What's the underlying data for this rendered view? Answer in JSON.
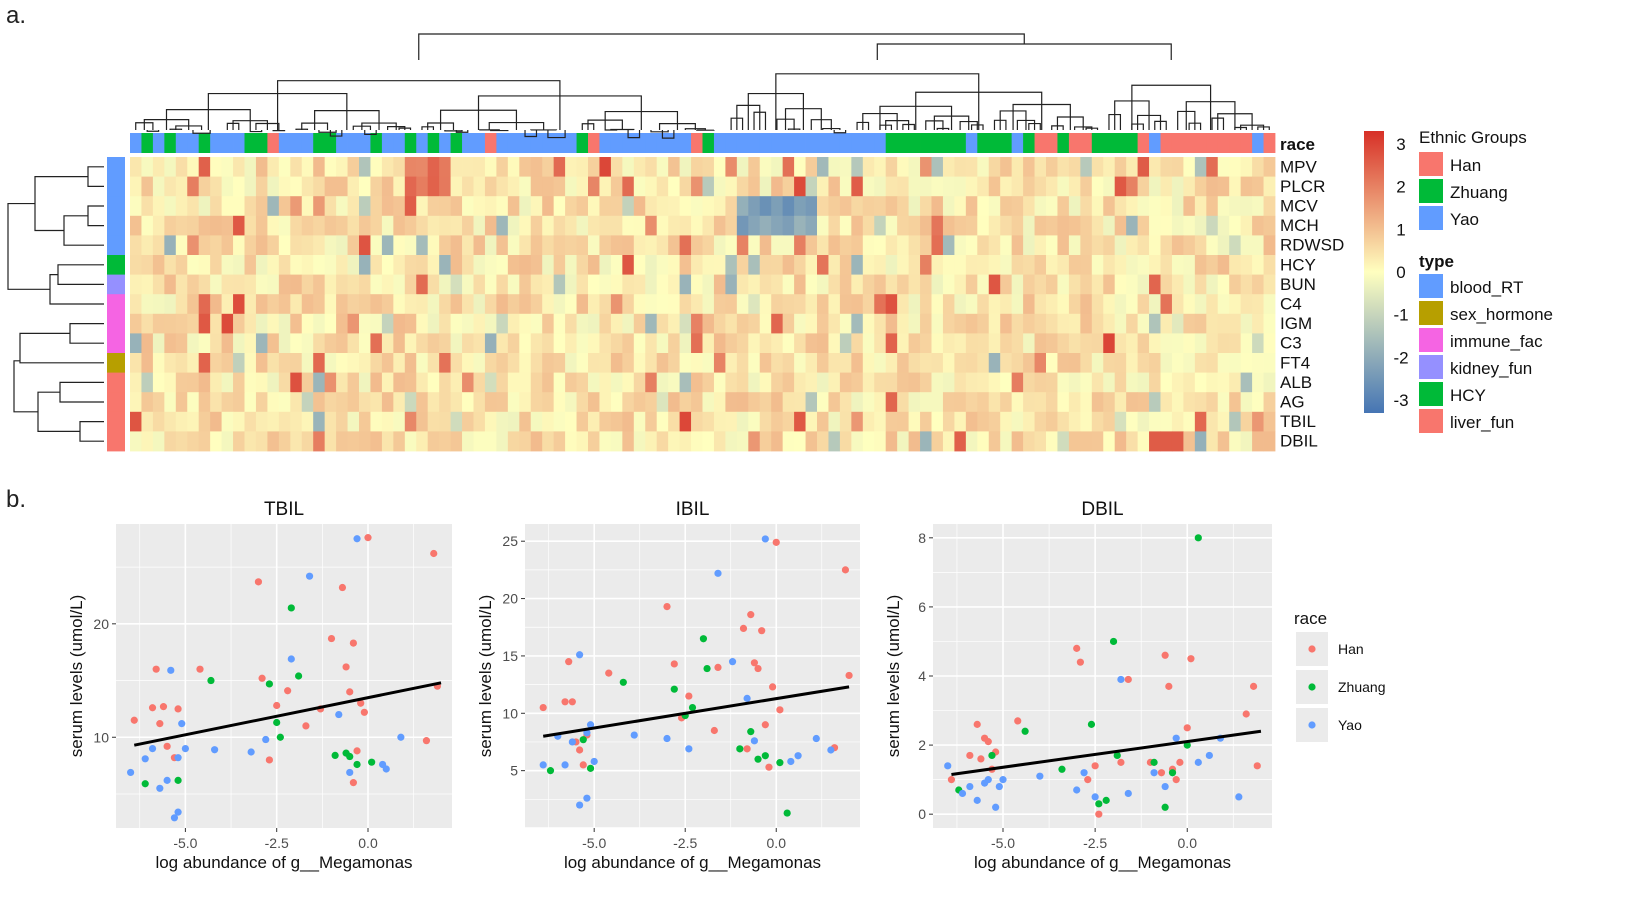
{
  "panel_labels": {
    "a": "a.",
    "b": "b."
  },
  "heatmap": {
    "race_label": "race",
    "rows": [
      "MPV",
      "PLCR",
      "MCV",
      "MCH",
      "RDWSD",
      "HCY",
      "BUN",
      "C4",
      "IGM",
      "C3",
      "FT4",
      "ALB",
      "AG",
      "TBIL",
      "DBIL"
    ],
    "row_types": [
      "blood_RT",
      "blood_RT",
      "blood_RT",
      "blood_RT",
      "blood_RT",
      "HCY",
      "kidney_fun",
      "immune_fac",
      "immune_fac",
      "immune_fac",
      "sex_hormone",
      "liver_fun",
      "liver_fun",
      "liver_fun",
      "liver_fun"
    ],
    "color_scale": {
      "ticks": [
        "3",
        "2",
        "1",
        "0",
        "-1",
        "-2",
        "-3"
      ],
      "min": -3.3,
      "max": 3.3,
      "low": "#4575b4",
      "mid": "#ffffbf",
      "high": "#d73027"
    },
    "legend": {
      "ethnic_title": "Ethnic Groups",
      "ethnic": [
        {
          "label": "Han",
          "color": "#f8766d"
        },
        {
          "label": "Zhuang",
          "color": "#00ba38"
        },
        {
          "label": "Yao",
          "color": "#619cff"
        }
      ],
      "type_title": "type",
      "types": [
        {
          "label": "blood_RT",
          "color": "#619cff"
        },
        {
          "label": "sex_hormone",
          "color": "#b79f00"
        },
        {
          "label": "immune_fac",
          "color": "#f564e3"
        },
        {
          "label": "kidney_fun",
          "color": "#9590ff"
        },
        {
          "label": "HCY",
          "color": "#00ba38"
        },
        {
          "label": "liver_fun",
          "color": "#f8766d"
        }
      ]
    }
  },
  "chart_data": [
    {
      "type": "scatter",
      "title": "TBIL",
      "xlabel": "log abundance of g__Megamonas",
      "ylabel": "serum levels (umol/L)",
      "xlim": [
        -6.9,
        2.3
      ],
      "ylim": [
        2.0,
        28.8
      ],
      "xticks": [
        -5.0,
        -2.5,
        0.0
      ],
      "xtick_labels": [
        "-5.0",
        "-2.5",
        "0.0"
      ],
      "yticks": [
        10,
        20
      ],
      "ytick_labels": [
        "10",
        "20"
      ],
      "trend": {
        "x": [
          -6.4,
          2.0
        ],
        "y": [
          9.3,
          14.8
        ]
      },
      "series": [
        {
          "name": "Han",
          "color": "#f8766d",
          "points": [
            [
              -6.4,
              11.5
            ],
            [
              -5.9,
              12.6
            ],
            [
              -5.8,
              16.0
            ],
            [
              -5.6,
              12.7
            ],
            [
              -5.7,
              11.2
            ],
            [
              -5.5,
              9.2
            ],
            [
              -5.3,
              8.2
            ],
            [
              -5.2,
              12.5
            ],
            [
              -4.6,
              16.0
            ],
            [
              -3.0,
              23.7
            ],
            [
              -2.9,
              15.2
            ],
            [
              -2.7,
              8.0
            ],
            [
              -2.5,
              12.8
            ],
            [
              -2.2,
              14.1
            ],
            [
              -1.7,
              11.0
            ],
            [
              -1.3,
              12.5
            ],
            [
              -1.0,
              18.7
            ],
            [
              -0.7,
              23.2
            ],
            [
              -0.6,
              16.2
            ],
            [
              -0.5,
              14.0
            ],
            [
              -0.4,
              18.3
            ],
            [
              -0.4,
              6.0
            ],
            [
              -0.3,
              8.8
            ],
            [
              -0.2,
              13.0
            ],
            [
              -0.1,
              12.2
            ],
            [
              0.0,
              27.6
            ],
            [
              1.6,
              9.7
            ],
            [
              1.8,
              26.2
            ],
            [
              1.9,
              14.5
            ]
          ]
        },
        {
          "name": "Zhuang",
          "color": "#00ba38",
          "points": [
            [
              -6.1,
              5.9
            ],
            [
              -5.2,
              6.2
            ],
            [
              -4.3,
              15.0
            ],
            [
              -2.7,
              14.7
            ],
            [
              -2.5,
              11.3
            ],
            [
              -2.4,
              10.0
            ],
            [
              -2.1,
              21.4
            ],
            [
              -1.9,
              15.4
            ],
            [
              -0.9,
              8.4
            ],
            [
              -0.6,
              8.6
            ],
            [
              -0.5,
              8.3
            ],
            [
              -0.3,
              7.6
            ],
            [
              0.1,
              7.8
            ]
          ]
        },
        {
          "name": "Yao",
          "color": "#619cff",
          "points": [
            [
              -6.5,
              6.9
            ],
            [
              -6.1,
              8.1
            ],
            [
              -5.9,
              9.0
            ],
            [
              -5.7,
              5.5
            ],
            [
              -5.5,
              6.2
            ],
            [
              -5.4,
              15.9
            ],
            [
              -5.3,
              2.9
            ],
            [
              -5.2,
              3.4
            ],
            [
              -5.2,
              8.2
            ],
            [
              -5.1,
              11.2
            ],
            [
              -5.0,
              9.0
            ],
            [
              -4.2,
              8.9
            ],
            [
              -3.2,
              8.7
            ],
            [
              -2.8,
              9.8
            ],
            [
              -2.1,
              16.9
            ],
            [
              -1.6,
              24.2
            ],
            [
              -0.8,
              12.0
            ],
            [
              -0.5,
              6.9
            ],
            [
              -0.3,
              27.5
            ],
            [
              0.4,
              7.6
            ],
            [
              0.5,
              7.2
            ],
            [
              0.9,
              10.0
            ]
          ]
        }
      ]
    },
    {
      "type": "scatter",
      "title": "IBIL",
      "xlabel": "log abundance of g__Megamonas",
      "ylabel": "serum levels (umol/L)",
      "xlim": [
        -6.9,
        2.3
      ],
      "ylim": [
        0.0,
        26.5
      ],
      "xticks": [
        -5.0,
        -2.5,
        0.0
      ],
      "xtick_labels": [
        "-5.0",
        "-2.5",
        "0.0"
      ],
      "yticks": [
        5,
        10,
        15,
        20,
        25
      ],
      "ytick_labels": [
        "5",
        "10",
        "15",
        "20",
        "25"
      ],
      "trend": {
        "x": [
          -6.4,
          2.0
        ],
        "y": [
          8.0,
          12.3
        ]
      },
      "series": [
        {
          "name": "Han",
          "color": "#f8766d",
          "points": [
            [
              -6.4,
              10.5
            ],
            [
              -5.8,
              11.0
            ],
            [
              -5.7,
              14.5
            ],
            [
              -5.6,
              11.0
            ],
            [
              -5.5,
              7.5
            ],
            [
              -5.4,
              6.8
            ],
            [
              -5.3,
              5.5
            ],
            [
              -5.2,
              8.1
            ],
            [
              -4.6,
              13.5
            ],
            [
              -3.0,
              19.3
            ],
            [
              -2.8,
              14.3
            ],
            [
              -2.6,
              9.6
            ],
            [
              -2.4,
              11.5
            ],
            [
              -1.7,
              8.5
            ],
            [
              -1.6,
              14.0
            ],
            [
              -0.9,
              17.4
            ],
            [
              -0.8,
              6.9
            ],
            [
              -0.7,
              18.6
            ],
            [
              -0.6,
              14.4
            ],
            [
              -0.5,
              13.9
            ],
            [
              -0.4,
              17.2
            ],
            [
              -0.3,
              9.0
            ],
            [
              -0.2,
              5.3
            ],
            [
              -0.1,
              12.3
            ],
            [
              0.1,
              10.3
            ],
            [
              0.0,
              24.9
            ],
            [
              1.6,
              7.0
            ],
            [
              1.9,
              22.5
            ],
            [
              2.0,
              13.3
            ]
          ]
        },
        {
          "name": "Zhuang",
          "color": "#00ba38",
          "points": [
            [
              -6.2,
              5.0
            ],
            [
              -5.3,
              7.7
            ],
            [
              -5.1,
              5.2
            ],
            [
              -4.2,
              12.7
            ],
            [
              -2.8,
              12.1
            ],
            [
              -2.5,
              9.8
            ],
            [
              -2.3,
              10.5
            ],
            [
              -2.0,
              16.5
            ],
            [
              -1.9,
              13.9
            ],
            [
              -1.0,
              6.9
            ],
            [
              -0.7,
              8.4
            ],
            [
              -0.5,
              6.0
            ],
            [
              -0.3,
              6.3
            ],
            [
              0.1,
              5.7
            ],
            [
              0.3,
              1.3
            ]
          ]
        },
        {
          "name": "Yao",
          "color": "#619cff",
          "points": [
            [
              -6.4,
              5.5
            ],
            [
              -6.0,
              8.0
            ],
            [
              -5.8,
              5.5
            ],
            [
              -5.6,
              7.5
            ],
            [
              -5.4,
              15.1
            ],
            [
              -5.4,
              2.0
            ],
            [
              -5.2,
              2.6
            ],
            [
              -5.2,
              8.3
            ],
            [
              -5.1,
              9.0
            ],
            [
              -5.0,
              5.8
            ],
            [
              -3.9,
              8.1
            ],
            [
              -3.0,
              7.8
            ],
            [
              -2.4,
              6.9
            ],
            [
              -1.6,
              22.2
            ],
            [
              -1.2,
              14.5
            ],
            [
              -0.8,
              11.3
            ],
            [
              -0.6,
              7.6
            ],
            [
              -0.3,
              25.2
            ],
            [
              0.4,
              5.8
            ],
            [
              0.6,
              6.3
            ],
            [
              1.1,
              7.8
            ],
            [
              1.5,
              6.8
            ]
          ]
        }
      ]
    },
    {
      "type": "scatter",
      "title": "DBIL",
      "xlabel": "log abundance of g__Megamonas",
      "ylabel": "serum levels (umol/L)",
      "xlim": [
        -6.9,
        2.3
      ],
      "ylim": [
        -0.4,
        8.4
      ],
      "xticks": [
        -5.0,
        -2.5,
        0.0
      ],
      "xtick_labels": [
        "-5.0",
        "-2.5",
        "0.0"
      ],
      "yticks": [
        0,
        2,
        4,
        6,
        8
      ],
      "ytick_labels": [
        "0",
        "2",
        "4",
        "6",
        "8"
      ],
      "trend": {
        "x": [
          -6.4,
          2.0
        ],
        "y": [
          1.15,
          2.4
        ]
      },
      "series": [
        {
          "name": "Han",
          "color": "#f8766d",
          "points": [
            [
              -6.4,
              1.0
            ],
            [
              -5.9,
              1.7
            ],
            [
              -5.7,
              2.6
            ],
            [
              -5.6,
              1.6
            ],
            [
              -5.5,
              2.2
            ],
            [
              -5.4,
              2.1
            ],
            [
              -5.3,
              1.3
            ],
            [
              -5.2,
              1.8
            ],
            [
              -4.6,
              2.7
            ],
            [
              -3.0,
              4.8
            ],
            [
              -2.9,
              4.4
            ],
            [
              -2.7,
              1.0
            ],
            [
              -2.5,
              1.4
            ],
            [
              -2.4,
              0.0
            ],
            [
              -1.8,
              1.5
            ],
            [
              -1.6,
              3.9
            ],
            [
              -1.0,
              1.5
            ],
            [
              -0.7,
              1.2
            ],
            [
              -0.6,
              4.6
            ],
            [
              -0.5,
              3.7
            ],
            [
              -0.4,
              1.3
            ],
            [
              -0.3,
              1.0
            ],
            [
              -0.2,
              1.5
            ],
            [
              0.0,
              2.5
            ],
            [
              0.1,
              4.5
            ],
            [
              1.6,
              2.9
            ],
            [
              1.8,
              3.7
            ],
            [
              1.9,
              1.4
            ]
          ]
        },
        {
          "name": "Zhuang",
          "color": "#00ba38",
          "points": [
            [
              -6.2,
              0.7
            ],
            [
              -5.3,
              1.7
            ],
            [
              -4.4,
              2.4
            ],
            [
              -3.4,
              1.3
            ],
            [
              -2.6,
              2.6
            ],
            [
              -2.4,
              0.3
            ],
            [
              -2.2,
              0.4
            ],
            [
              -2.0,
              5.0
            ],
            [
              -1.9,
              1.7
            ],
            [
              -0.9,
              1.5
            ],
            [
              -0.6,
              0.2
            ],
            [
              -0.4,
              1.2
            ],
            [
              0.0,
              2.0
            ],
            [
              0.3,
              8.0
            ]
          ]
        },
        {
          "name": "Yao",
          "color": "#619cff",
          "points": [
            [
              -6.5,
              1.4
            ],
            [
              -6.1,
              0.6
            ],
            [
              -5.9,
              0.8
            ],
            [
              -5.7,
              0.4
            ],
            [
              -5.5,
              0.9
            ],
            [
              -5.4,
              1.0
            ],
            [
              -5.2,
              0.2
            ],
            [
              -5.1,
              0.8
            ],
            [
              -5.0,
              1.0
            ],
            [
              -4.0,
              1.1
            ],
            [
              -3.0,
              0.7
            ],
            [
              -2.8,
              1.2
            ],
            [
              -2.5,
              0.5
            ],
            [
              -1.8,
              3.9
            ],
            [
              -1.6,
              0.6
            ],
            [
              -0.9,
              1.2
            ],
            [
              -0.6,
              0.8
            ],
            [
              -0.3,
              2.2
            ],
            [
              0.3,
              1.5
            ],
            [
              0.6,
              1.7
            ],
            [
              0.9,
              2.2
            ],
            [
              1.4,
              0.5
            ]
          ]
        }
      ]
    }
  ],
  "scatter_legend": {
    "title": "race",
    "items": [
      {
        "label": "Han",
        "color": "#f8766d"
      },
      {
        "label": "Zhuang",
        "color": "#00ba38"
      },
      {
        "label": "Yao",
        "color": "#619cff"
      }
    ]
  }
}
